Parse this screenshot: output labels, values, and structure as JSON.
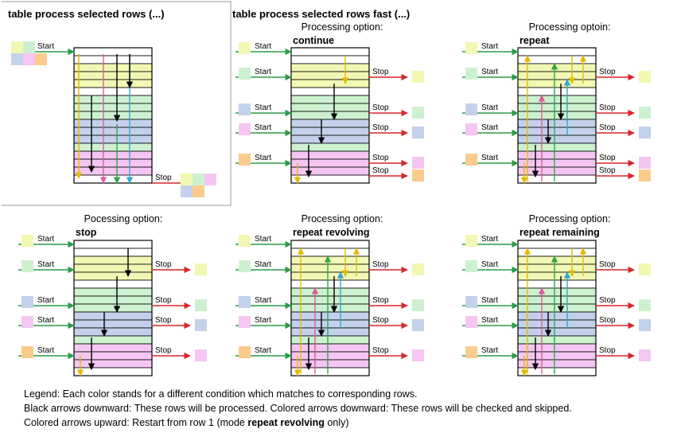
{
  "title_main": "table process selected rows (...)",
  "title_fast": "table process selected rows fast (...)",
  "panels": [
    {
      "caption": "",
      "option": ""
    },
    {
      "caption": "Processing option:",
      "option": "continue"
    },
    {
      "caption": "Processing optoin:",
      "option": "repeat"
    },
    {
      "caption": "Pocessing option:",
      "option": "stop"
    },
    {
      "caption": "Processing option:",
      "option": "repeat revolving"
    },
    {
      "caption": "Processing option:",
      "option": "repeat remaining"
    }
  ],
  "labels": {
    "start": "Start",
    "stop": "Stop"
  },
  "colors": {
    "yellow": "#f2f8b4",
    "green": "#cdf1cf",
    "blue": "#c3d1ea",
    "pink": "#f5c6f1",
    "orange": "#fbcb8e",
    "arrow_yellow": "#e6b800",
    "arrow_green": "#2ea84a",
    "arrow_blue": "#2fa6d6",
    "arrow_pink": "#e05a9a",
    "arrow_red": "#d8262a",
    "arrow_start": "#2c9c4a"
  },
  "legend": {
    "line1": "Legend: Each color stands for a different condition which matches to corresponding rows.",
    "line2": "Black arrows downward:  These rows will be processed.  Colored arrows downward:  These rows will be checked and skipped.",
    "line3_pre": "Colored arrows upward:  Restart from row 1 (mode ",
    "line3_bold": "repeat revolving",
    "line3_post": " only)"
  }
}
